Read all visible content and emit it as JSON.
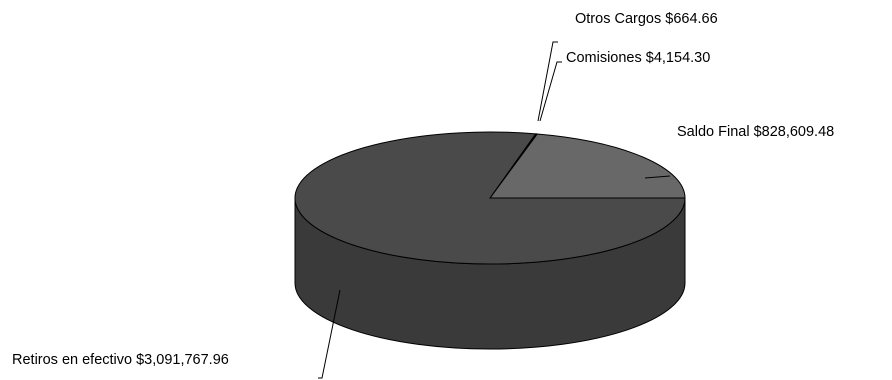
{
  "chart_data": {
    "type": "pie",
    "style": "3d",
    "title": "",
    "slices": [
      {
        "label": "Retiros en efectivo $3,091,767.96",
        "name": "Retiros en efectivo",
        "value": 3091767.96,
        "color": "#4a4a4a"
      },
      {
        "label": "Saldo Final $828,609.48",
        "name": "Saldo Final",
        "value": 828609.48,
        "color": "#686868"
      },
      {
        "label": "Comisiones $4,154.30",
        "name": "Comisiones",
        "value": 4154.3,
        "color": "#4a4a4a"
      },
      {
        "label": "Otros Cargos $664.66",
        "name": "Otros Cargos",
        "value": 664.66,
        "color": "#4a4a4a"
      }
    ],
    "side_color": "#3a3a3a",
    "legend": "none"
  }
}
